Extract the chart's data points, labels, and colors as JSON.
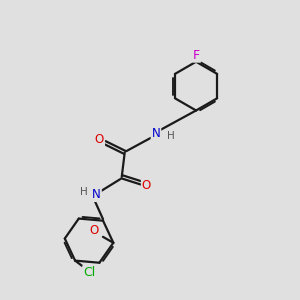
{
  "background_color": "#e0e0e0",
  "bond_color": "#1a1a1a",
  "bond_width": 1.6,
  "atom_colors": {
    "O": "#dd0000",
    "N": "#0000cc",
    "Cl": "#00aa00",
    "F": "#cc00cc",
    "H": "#555555",
    "C": "#1a1a1a"
  },
  "font_size": 8.5,
  "fig_width": 3.0,
  "fig_height": 3.0,
  "dpi": 100
}
